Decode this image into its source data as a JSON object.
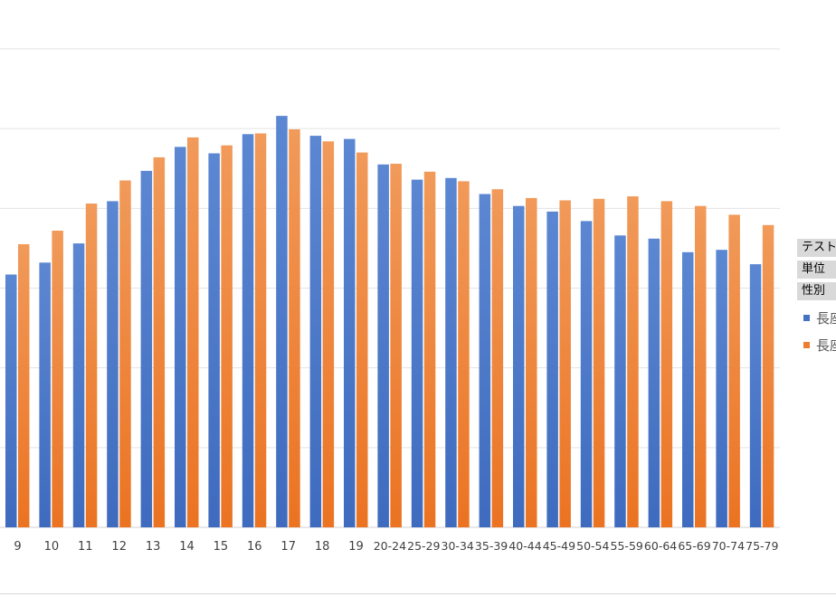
{
  "chart_data": {
    "type": "bar",
    "title": "",
    "xlabel": "",
    "ylabel": "",
    "ylim": [
      0,
      6
    ],
    "grid": true,
    "legend_position": "right",
    "categories": [
      "9",
      "10",
      "11",
      "12",
      "13",
      "14",
      "15",
      "16",
      "17",
      "18",
      "19",
      "20-24",
      "25-29",
      "30-34",
      "35-39",
      "40-44",
      "45-49",
      "50-54",
      "55-59",
      "60-64",
      "65-69",
      "70-74",
      "75-79"
    ],
    "series": [
      {
        "name": "長座",
        "color": "#4472c4",
        "values": [
          3.17,
          3.32,
          3.56,
          4.09,
          4.47,
          4.77,
          4.69,
          4.93,
          5.16,
          4.91,
          4.87,
          4.55,
          4.36,
          4.38,
          4.18,
          4.03,
          3.96,
          3.84,
          3.66,
          3.62,
          3.45,
          3.48,
          3.3
        ]
      },
      {
        "name": "長座",
        "color": "#ed7d31",
        "values": [
          3.55,
          3.72,
          4.06,
          4.35,
          4.64,
          4.89,
          4.79,
          4.94,
          4.99,
          4.84,
          4.7,
          4.56,
          4.46,
          4.34,
          4.24,
          4.13,
          4.1,
          4.12,
          4.15,
          4.09,
          4.03,
          3.92,
          3.79
        ]
      }
    ]
  },
  "filters": [
    {
      "label": "テスト内"
    },
    {
      "label": "単位"
    },
    {
      "label": "性別"
    }
  ],
  "legend": [
    {
      "label": "長座"
    },
    {
      "label": "長座"
    }
  ]
}
